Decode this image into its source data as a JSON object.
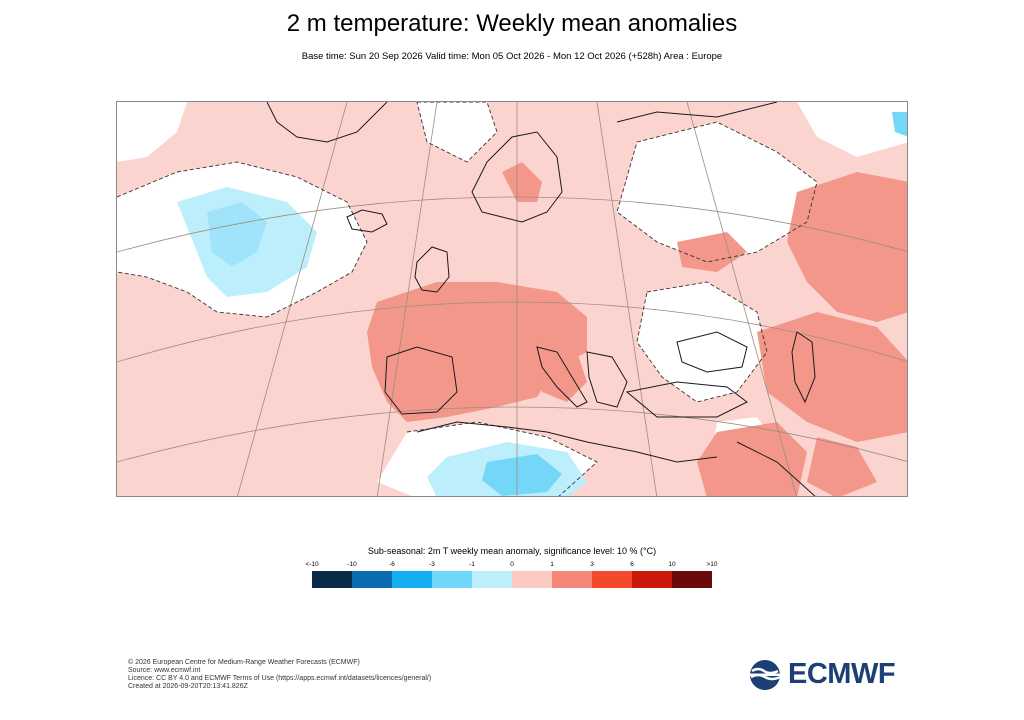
{
  "title": "2 m temperature: Weekly mean anomalies",
  "subtitle": "Base time: Sun 20 Sep 2026 Valid time: Mon 05 Oct 2026 - Mon 12 Oct 2026 (+528h) Area : Europe",
  "legend": {
    "title": "Sub-seasonal: 2m T weekly mean anomaly, significance level: 10 % (°C)",
    "labels": [
      "<-10",
      "-10",
      "-6",
      "-3",
      "-1",
      "0",
      "1",
      "3",
      "6",
      "10",
      ">10"
    ],
    "colors": [
      "#0a2a4a",
      "#0a6cb0",
      "#12aef0",
      "#6fd7fa",
      "#bdeefc",
      "#fcc9c3",
      "#f5877a",
      "#f24a2a",
      "#cc1a0a",
      "#6a0a0a"
    ]
  },
  "map_colors": {
    "sea_background": "#fcd4cf",
    "neutral": "#ffffff",
    "warm_1_3": "#f3978b",
    "cool_minus1_minus3": "#74d7f8",
    "cool_0_minus1": "#bdeefc",
    "coastline": "#1a1a1a",
    "graticule": "#9c8c80"
  },
  "footer": {
    "line1": "© 2026 European Centre for Medium-Range Weather Forecasts (ECMWF)",
    "line2": "Source: www.ecmwf.int",
    "line3": "Licence: CC BY 4.0 and ECMWF Terms of Use (https://apps.ecmwf.int/datasets/licences/general/)",
    "line4": "Created at 2026-09-20T20:13:41.826Z"
  },
  "logo": {
    "text": "ECMWF",
    "icon": "ecmwf-wave-logo-icon",
    "color": "#1c3f76"
  }
}
